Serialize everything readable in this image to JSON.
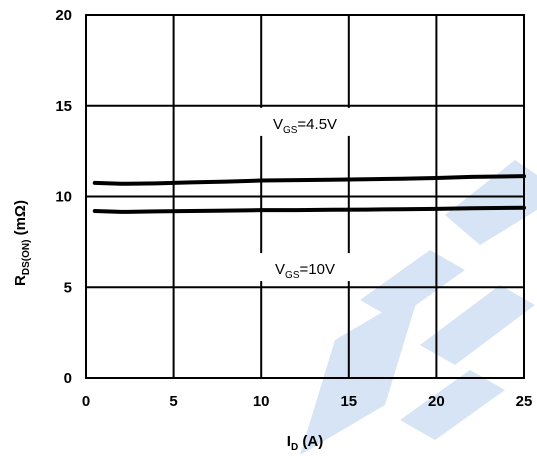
{
  "chart_data": {
    "type": "line",
    "xlabel": {
      "main": "I",
      "sub": "D",
      "rest": " (A)"
    },
    "ylabel": {
      "main": "R",
      "sub": "DS(ON)",
      "rest": " (mΩ)"
    },
    "xlim": [
      0,
      25
    ],
    "ylim": [
      0,
      20
    ],
    "xticks": [
      0,
      5,
      10,
      15,
      20,
      25
    ],
    "yticks": [
      0,
      5,
      10,
      15,
      20
    ],
    "grid": true,
    "series": [
      {
        "name": "VGS=4.5V",
        "x": [
          0.5,
          2,
          4,
          6,
          8,
          10,
          12,
          14,
          16,
          18,
          20,
          22,
          25
        ],
        "values": [
          10.75,
          10.7,
          10.72,
          10.78,
          10.82,
          10.88,
          10.9,
          10.92,
          10.95,
          10.98,
          11.02,
          11.08,
          11.12
        ]
      },
      {
        "name": "VGS=10V",
        "x": [
          0.5,
          2,
          4,
          6,
          8,
          10,
          12,
          14,
          16,
          18,
          20,
          22,
          25
        ],
        "values": [
          9.2,
          9.15,
          9.18,
          9.2,
          9.22,
          9.25,
          9.25,
          9.27,
          9.28,
          9.3,
          9.32,
          9.35,
          9.38
        ]
      }
    ],
    "annotations": [
      {
        "main": "V",
        "sub": "GS",
        "rest": "=4.5V",
        "x": 12.5,
        "y": 14
      },
      {
        "main": "V",
        "sub": "GS",
        "rest": "=10V",
        "x": 12.5,
        "y": 6
      }
    ]
  },
  "watermark": {
    "color": "#d6e4f5"
  }
}
